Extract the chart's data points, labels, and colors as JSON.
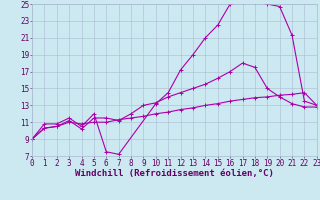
{
  "xlabel": "Windchill (Refroidissement éolien,°C)",
  "xlim": [
    0,
    23
  ],
  "ylim": [
    7,
    25
  ],
  "xticks": [
    0,
    1,
    2,
    3,
    4,
    5,
    6,
    7,
    8,
    9,
    10,
    11,
    12,
    13,
    14,
    15,
    16,
    17,
    18,
    19,
    20,
    21,
    22,
    23
  ],
  "yticks": [
    7,
    9,
    11,
    13,
    15,
    17,
    19,
    21,
    23,
    25
  ],
  "background_color": "#cce8f0",
  "grid_color": "#aabbd0",
  "line_color": "#aa00aa",
  "line1_x": [
    0,
    1,
    2,
    3,
    4,
    5,
    6,
    7,
    10,
    11,
    12,
    13,
    14,
    15,
    16,
    17,
    18,
    19,
    20,
    21,
    22,
    23
  ],
  "line1_y": [
    9,
    10.8,
    10.8,
    11.5,
    10.5,
    12.0,
    7.5,
    7.2,
    13.2,
    14.5,
    17.2,
    19.0,
    21.0,
    22.5,
    25.0,
    25.2,
    25.2,
    25.0,
    24.7,
    21.3,
    13.5,
    13.0
  ],
  "line2_x": [
    0,
    1,
    2,
    3,
    4,
    5,
    6,
    7,
    8,
    9,
    10,
    11,
    12,
    13,
    14,
    15,
    16,
    17,
    18,
    19,
    20,
    21,
    22,
    23
  ],
  "line2_y": [
    9,
    10.3,
    10.5,
    11.2,
    10.2,
    11.5,
    11.5,
    11.2,
    12.0,
    13.0,
    13.3,
    14.0,
    14.5,
    15.0,
    15.5,
    16.2,
    17.0,
    18.0,
    17.5,
    15.0,
    14.0,
    13.2,
    12.8,
    12.8
  ],
  "line3_x": [
    0,
    1,
    2,
    3,
    4,
    5,
    6,
    7,
    8,
    9,
    10,
    11,
    12,
    13,
    14,
    15,
    16,
    17,
    18,
    19,
    20,
    21,
    22,
    23
  ],
  "line3_y": [
    9,
    10.3,
    10.5,
    11.0,
    10.8,
    11.0,
    11.0,
    11.3,
    11.5,
    11.7,
    12.0,
    12.2,
    12.5,
    12.7,
    13.0,
    13.2,
    13.5,
    13.7,
    13.9,
    14.0,
    14.2,
    14.3,
    14.5,
    13.0
  ],
  "font_color": "#660066",
  "tick_fontsize": 5.5,
  "label_fontsize": 6.5
}
